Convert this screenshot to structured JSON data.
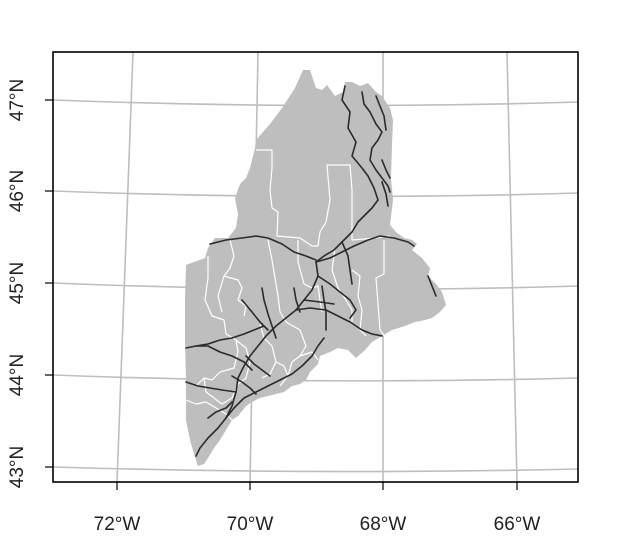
{
  "map": {
    "region": "Maine",
    "colors": {
      "land": "#bebebe",
      "graticule": "#bebebe",
      "county_boundaries": "#ffffff",
      "roads": "#2b2b2b",
      "frame": "#000000",
      "background": "#ffffff"
    },
    "x_axis": {
      "ticks": [
        {
          "label": "72°W",
          "lon": -72
        },
        {
          "label": "70°W",
          "lon": -70
        },
        {
          "label": "68°W",
          "lon": -68
        },
        {
          "label": "66°W",
          "lon": -66
        }
      ]
    },
    "y_axis": {
      "ticks": [
        {
          "label": "43°N",
          "lat": 43
        },
        {
          "label": "44°N",
          "lat": 44
        },
        {
          "label": "45°N",
          "lat": 45
        },
        {
          "label": "46°N",
          "lat": 46
        },
        {
          "label": "47°N",
          "lat": 47
        }
      ]
    }
  }
}
